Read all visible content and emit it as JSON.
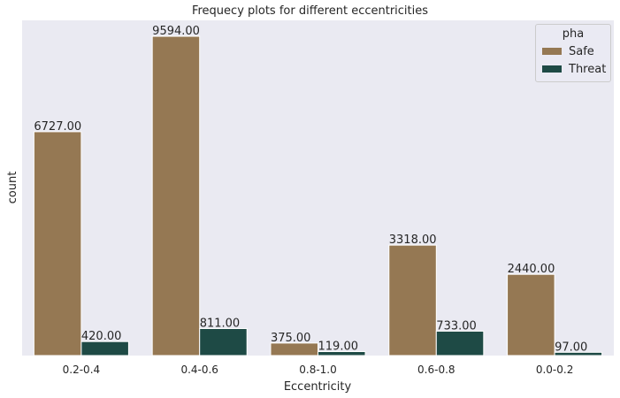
{
  "chart_data": {
    "type": "bar",
    "title": "Frequecy plots for different eccentricities",
    "xlabel": "Eccentricity",
    "ylabel": "count",
    "categories": [
      "0.2-0.4",
      "0.4-0.6",
      "0.8-1.0",
      "0.6-0.8",
      "0.0-0.2"
    ],
    "series": [
      {
        "name": "Safe",
        "color": "#957853",
        "values": [
          6727,
          9594,
          375,
          3318,
          2440
        ],
        "labels": [
          "6727.00",
          "9594.00",
          "375.00",
          "3318.00",
          "2440.00"
        ]
      },
      {
        "name": "Threat",
        "color": "#1e4a45",
        "values": [
          420,
          811,
          119,
          733,
          97
        ],
        "labels": [
          "420.00",
          "811.00",
          "119.00",
          "733.00",
          "97.00"
        ]
      }
    ],
    "legend": {
      "title": "pha",
      "position": "top-right"
    },
    "ylim": [
      0,
      10074
    ],
    "grid": false,
    "background": "#eaeaf2"
  }
}
